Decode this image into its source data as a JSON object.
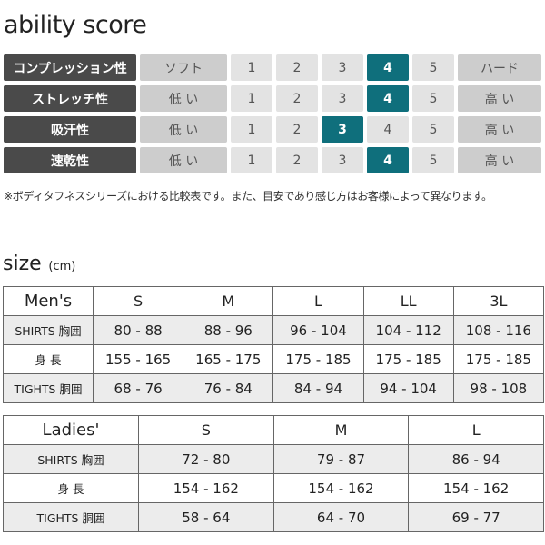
{
  "title": "ability score",
  "ability": {
    "scale": [
      "1",
      "2",
      "3",
      "4",
      "5"
    ],
    "rows": [
      {
        "label": "コンプレッション性",
        "low": "ソフト",
        "high": "ハード",
        "value": 4
      },
      {
        "label": "ストレッチ性",
        "low": "低 い",
        "high": "高 い",
        "value": 4
      },
      {
        "label": "吸汗性",
        "low": "低 い",
        "high": "高 い",
        "value": 3
      },
      {
        "label": "速乾性",
        "low": "低 い",
        "high": "高 い",
        "value": 4
      }
    ],
    "selected_color": "#0f6f7c"
  },
  "note": "※ボディタフネスシリーズにおける比較表です。また、目安であり感じ方はお客様によって異なります。",
  "size": {
    "title": "size",
    "unit": "(cm)"
  },
  "mens": {
    "header": [
      "Men's",
      "S",
      "M",
      "L",
      "LL",
      "3L"
    ],
    "rows": [
      [
        "SHIRTS 胸囲",
        "80 - 88",
        "88 - 96",
        "96 - 104",
        "104 - 112",
        "108 - 116"
      ],
      [
        "身 長",
        "155 - 165",
        "165 - 175",
        "175 - 185",
        "175 - 185",
        "175 - 185"
      ],
      [
        "TIGHTS 胴囲",
        "68 - 76",
        "76 - 84",
        "84 - 94",
        "94 - 104",
        "98 - 108"
      ]
    ]
  },
  "ladies": {
    "header": [
      "Ladies'",
      "S",
      "M",
      "L"
    ],
    "rows": [
      [
        "SHIRTS 胸囲",
        "72 - 80",
        "79 - 87",
        "86 - 94"
      ],
      [
        "身 長",
        "154 - 162",
        "154 - 162",
        "154 - 162"
      ],
      [
        "TIGHTS 胴囲",
        "58 - 64",
        "64 - 70",
        "69 - 77"
      ]
    ]
  }
}
